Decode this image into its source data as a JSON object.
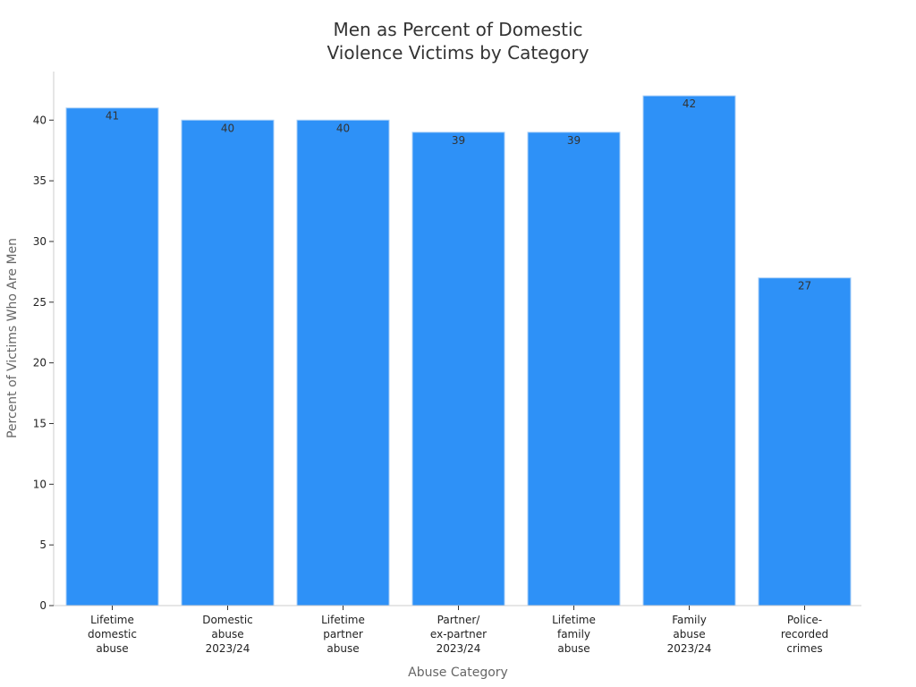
{
  "chart_data": {
    "type": "bar",
    "title": [
      "Men as Percent of Domestic",
      "Violence Victims by Category"
    ],
    "xlabel": "Abuse Category",
    "ylabel": "Percent of Victims Who Are Men",
    "categories": [
      [
        "Lifetime",
        "domestic",
        "abuse"
      ],
      [
        "Domestic",
        "abuse",
        "2023/24"
      ],
      [
        "Lifetime",
        "partner",
        "abuse"
      ],
      [
        "Partner/",
        "ex-partner",
        "2023/24"
      ],
      [
        "Lifetime",
        "family",
        "abuse"
      ],
      [
        "Family",
        "abuse",
        "2023/24"
      ],
      [
        "Police-",
        "recorded",
        "crimes"
      ]
    ],
    "values": [
      41,
      40,
      40,
      39,
      39,
      42,
      27
    ],
    "ylim": [
      0,
      44
    ],
    "yticks": [
      0,
      5,
      10,
      15,
      20,
      25,
      30,
      35,
      40
    ],
    "bar_color": "#2e91f7",
    "bar_edge_color": "#a9cff7",
    "grid": false,
    "legend": "none"
  }
}
